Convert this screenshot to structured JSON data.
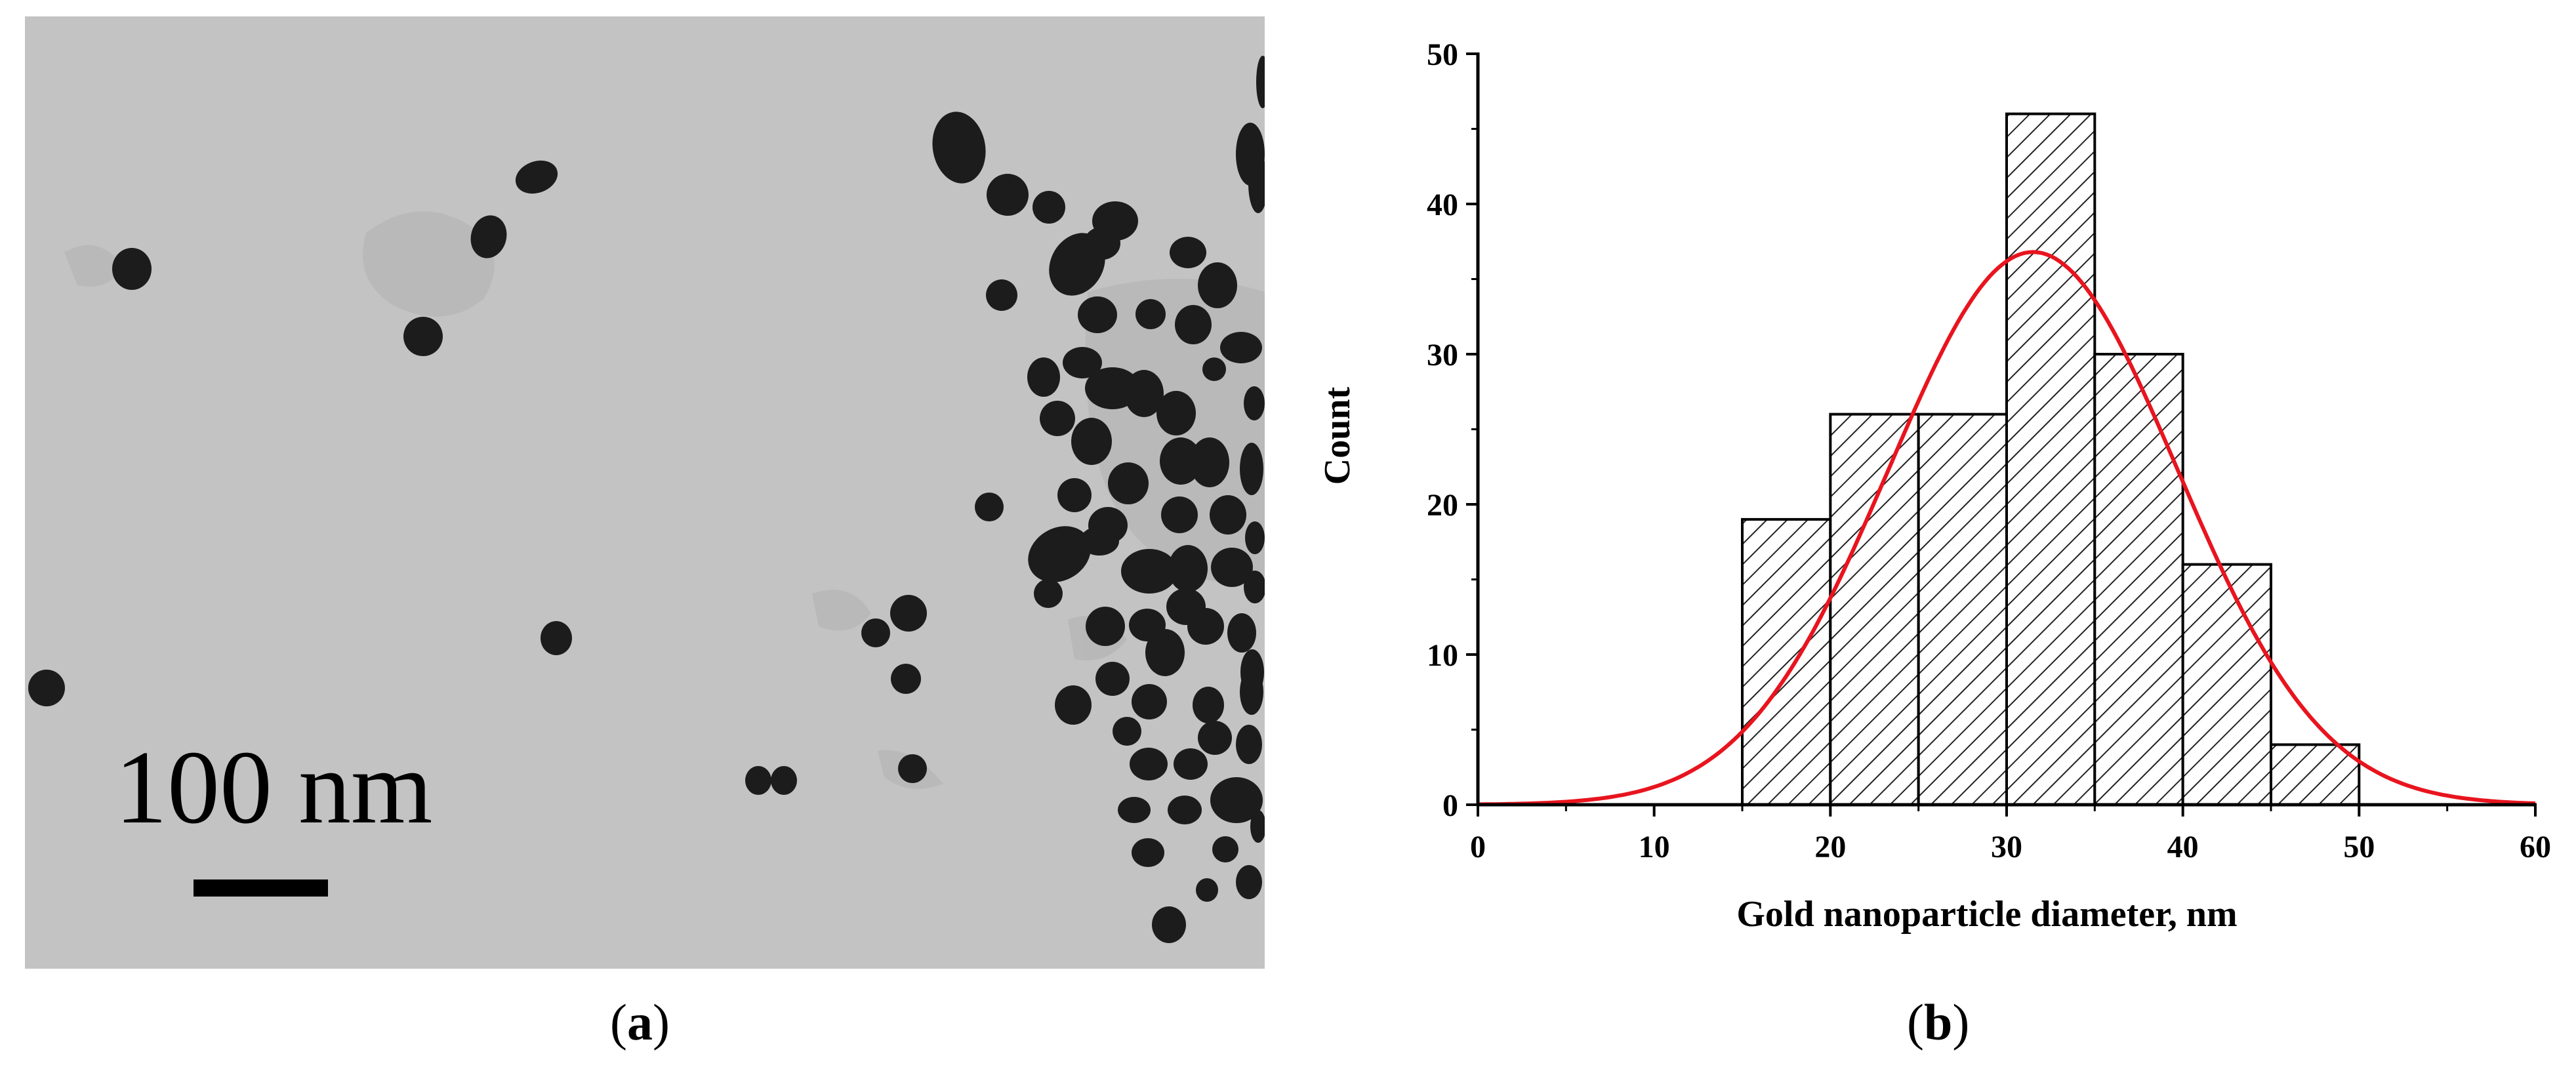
{
  "panel_a": {
    "scale_bar_label": "100 nm",
    "caption_letter": "a"
  },
  "panel_b": {
    "caption_letter": "b"
  },
  "chart_data": {
    "type": "bar",
    "title": "",
    "xlabel": "Gold nanoparticle diameter, nm",
    "ylabel": "Count",
    "xlim": [
      0,
      60
    ],
    "ylim": [
      0,
      50
    ],
    "x_ticks": [
      0,
      10,
      20,
      30,
      40,
      50,
      60
    ],
    "y_ticks": [
      0,
      10,
      20,
      30,
      40,
      50
    ],
    "bins": [
      {
        "from": 15,
        "to": 20,
        "count": 19
      },
      {
        "from": 20,
        "to": 25,
        "count": 26
      },
      {
        "from": 25,
        "to": 30,
        "count": 26
      },
      {
        "from": 30,
        "to": 35,
        "count": 46
      },
      {
        "from": 35,
        "to": 40,
        "count": 30
      },
      {
        "from": 40,
        "to": 45,
        "count": 16
      },
      {
        "from": 45,
        "to": 50,
        "count": 4
      }
    ],
    "fit_curve": {
      "type": "gaussian",
      "mean": 31.5,
      "sd": 8.2,
      "peak": 36.8,
      "color": "#e8141e"
    },
    "bar_fill": "diagonal-hatch",
    "grid": false,
    "legend": "none"
  }
}
